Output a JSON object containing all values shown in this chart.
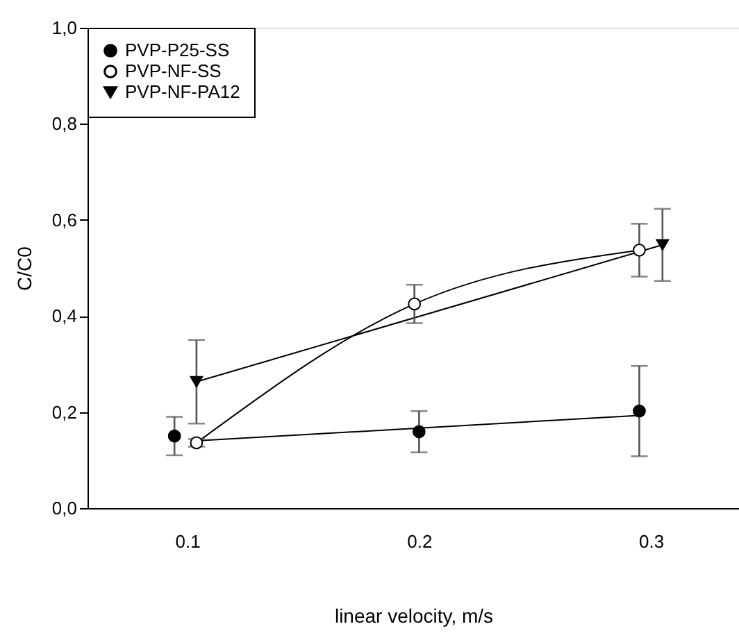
{
  "chart_data": {
    "type": "scatter",
    "xlabel": "linear velocity, m/s",
    "ylabel": "C/C0",
    "xlim": [
      0.057,
      0.338
    ],
    "xticks": [
      0.1,
      0.2,
      0.3
    ],
    "ylim": [
      0,
      1
    ],
    "yticks": [
      {
        "value": 0,
        "label": "0,0"
      },
      {
        "value": 0.2,
        "label": "0,2"
      },
      {
        "value": 0.4,
        "label": "0,4"
      },
      {
        "value": 0.6,
        "label": "0,6"
      },
      {
        "value": 0.8,
        "label": "0,8"
      },
      {
        "value": 1,
        "label": "1,0"
      }
    ],
    "legend": "top left",
    "grid": false,
    "series": [
      {
        "name": "PVP-P25-SS",
        "marker": "circle",
        "color": "#000000",
        "x": [
          0.0945,
          0.2,
          0.295
        ],
        "values": [
          0.15,
          0.159,
          0.202
        ],
        "errors": [
          0.04,
          0.043,
          0.094
        ]
      },
      {
        "name": "PVP-NF-SS",
        "type": "line",
        "marker": "circle",
        "color": "#ffffff",
        "x": [
          0.104,
          0.198,
          0.295
        ],
        "values": [
          0.136,
          0.425,
          0.537
        ],
        "errors": [
          0.008,
          0.04,
          0.055
        ]
      },
      {
        "name": "PVP-NF-PA12",
        "type": "line",
        "marker": "triangle",
        "color": "#000000",
        "x": [
          0.104,
          0.305
        ],
        "values": [
          0.263,
          0.548
        ],
        "errors": [
          0.087,
          0.075
        ]
      },
      {
        "type": "line",
        "marker": "none",
        "color": "#000000",
        "x": [
          0.104,
          0.295
        ],
        "values": [
          0.14,
          0.193
        ]
      }
    ]
  }
}
